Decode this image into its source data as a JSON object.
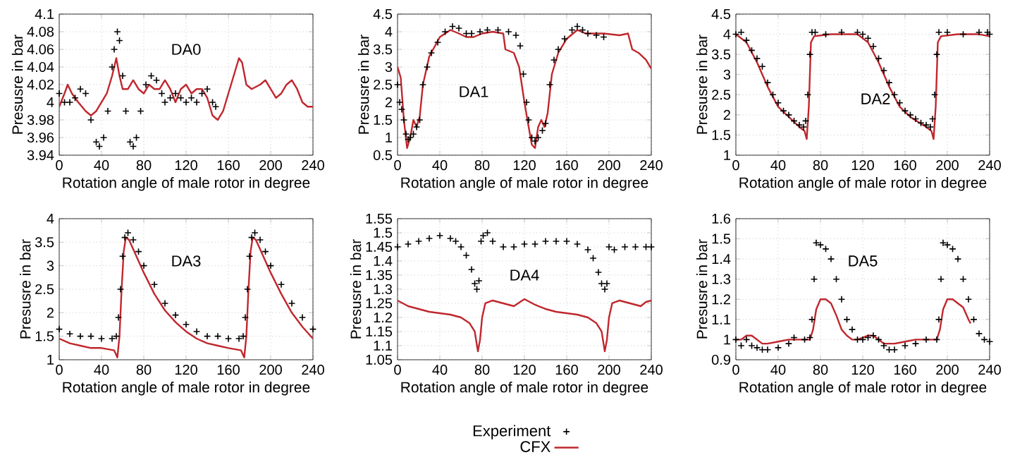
{
  "chart_data": [
    {
      "type": "line",
      "xlabel": "Rotation angle of male rotor in degree",
      "ylabel": "Presusre in bar",
      "annotations": [
        "DA0"
      ],
      "xlim": [
        0,
        240
      ],
      "xticks": [
        0,
        40,
        80,
        120,
        160,
        200,
        240
      ],
      "ylim": [
        3.94,
        4.1
      ],
      "yticks": [
        3.94,
        3.96,
        3.98,
        4,
        4.02,
        4.04,
        4.06,
        4.08,
        4.1
      ],
      "grid": true,
      "series": [
        {
          "type": "scatter",
          "marker": "cross",
          "color": "#000000",
          "x": [
            0,
            5,
            10,
            15,
            20,
            25,
            30,
            35,
            38,
            42,
            46,
            50,
            52,
            55,
            57,
            60,
            63,
            67,
            70,
            73,
            77,
            82,
            87,
            92,
            97,
            100,
            105,
            110,
            115,
            120,
            125,
            130,
            135,
            140,
            145,
            148
          ],
          "values": [
            4.01,
            4.0,
            4.0,
            4.005,
            4.015,
            4.01,
            3.98,
            3.955,
            3.95,
            3.96,
            3.99,
            4.04,
            4.06,
            4.08,
            4.07,
            4.03,
            3.99,
            3.955,
            3.95,
            3.96,
            3.99,
            4.02,
            4.03,
            4.025,
            4.01,
            4.0,
            4.005,
            4.01,
            4.005,
            4.0,
            4.005,
            4.0,
            4.01,
            4.015,
            4.0,
            3.995
          ]
        },
        {
          "line_style": "solid",
          "color": "#c0272d",
          "x": [
            0,
            5,
            8,
            12,
            18,
            25,
            30,
            35,
            40,
            45,
            50,
            54,
            57,
            60,
            65,
            70,
            75,
            80,
            85,
            90,
            95,
            100,
            105,
            110,
            115,
            120,
            125,
            130,
            135,
            140,
            145,
            150,
            155,
            160,
            165,
            170,
            173,
            177,
            182,
            190,
            195,
            200,
            205,
            210,
            215,
            220,
            225,
            230,
            235,
            240
          ],
          "values": [
            3.995,
            4.01,
            4.02,
            4.01,
            4.0,
            3.99,
            3.985,
            3.99,
            4.0,
            4.01,
            4.03,
            4.05,
            4.03,
            4.015,
            4.015,
            4.025,
            4.015,
            4.01,
            4.02,
            4.015,
            4.015,
            4.025,
            4.015,
            4.0,
            4.015,
            4.02,
            4.01,
            4.015,
            4.015,
            4.005,
            3.985,
            3.98,
            3.99,
            4.01,
            4.03,
            4.05,
            4.045,
            4.02,
            4.015,
            4.02,
            4.025,
            4.015,
            4.005,
            4.01,
            4.02,
            4.025,
            4.015,
            4.0,
            3.995,
            3.995
          ]
        }
      ]
    },
    {
      "type": "line",
      "xlabel": "Rotation angle of male rotor in degree",
      "ylabel": "Presusre in bar",
      "annotations": [
        "DA1"
      ],
      "xlim": [
        0,
        240
      ],
      "xticks": [
        0,
        40,
        80,
        120,
        160,
        200,
        240
      ],
      "ylim": [
        0.5,
        4.5
      ],
      "yticks": [
        0.5,
        1,
        1.5,
        2,
        2.5,
        3,
        3.5,
        4,
        4.5
      ],
      "grid": true,
      "series": [
        {
          "type": "scatter",
          "marker": "cross",
          "color": "#000000",
          "x": [
            0,
            2,
            4,
            6,
            8,
            10,
            12,
            15,
            18,
            21,
            24,
            28,
            32,
            38,
            45,
            52,
            58,
            65,
            70,
            78,
            85,
            95,
            105,
            112,
            116,
            119,
            122,
            124,
            127,
            130,
            133,
            137,
            140,
            144,
            148,
            152,
            158,
            165,
            170,
            175,
            180,
            188,
            195
          ],
          "values": [
            2.5,
            2.0,
            1.8,
            1.5,
            1.1,
            0.95,
            1.0,
            1.1,
            1.3,
            1.5,
            2.5,
            3.0,
            3.4,
            3.7,
            4.0,
            4.15,
            4.1,
            3.95,
            3.95,
            4.0,
            4.05,
            4.05,
            4.0,
            3.9,
            3.6,
            2.8,
            2.0,
            1.5,
            1.0,
            0.9,
            1.0,
            1.2,
            1.4,
            2.5,
            3.2,
            3.5,
            3.8,
            4.05,
            4.15,
            4.05,
            3.95,
            3.9,
            3.85
          ]
        },
        {
          "line_style": "solid",
          "color": "#c0272d",
          "x": [
            0,
            3,
            6,
            9,
            12,
            15,
            18,
            21,
            24,
            30,
            40,
            50,
            58,
            65,
            72,
            80,
            90,
            100,
            102,
            110,
            115,
            120,
            124,
            127,
            130,
            133,
            136,
            139,
            142,
            146,
            152,
            160,
            170,
            178,
            185,
            195,
            210,
            218,
            222,
            228,
            235,
            240
          ],
          "values": [
            3.0,
            2.7,
            1.5,
            0.7,
            1.0,
            1.5,
            1.3,
            1.6,
            2.5,
            3.3,
            3.85,
            4.05,
            3.95,
            3.85,
            3.85,
            3.95,
            4.0,
            3.95,
            3.5,
            3.4,
            3.0,
            2.0,
            1.3,
            0.8,
            0.7,
            1.3,
            1.5,
            1.3,
            1.7,
            2.8,
            3.4,
            3.8,
            4.05,
            3.95,
            3.95,
            3.95,
            3.9,
            3.95,
            3.5,
            3.4,
            3.2,
            2.95
          ]
        }
      ]
    },
    {
      "type": "line",
      "xlabel": "Rotation angle of male rotor in degree",
      "ylabel": "Presusre in bar",
      "annotations": [
        "DA2"
      ],
      "xlim": [
        0,
        240
      ],
      "xticks": [
        0,
        40,
        80,
        120,
        160,
        200,
        240
      ],
      "ylim": [
        1,
        4.5
      ],
      "yticks": [
        1,
        1.5,
        2,
        2.5,
        3,
        3.5,
        4,
        4.5
      ],
      "grid": true,
      "series": [
        {
          "type": "scatter",
          "marker": "cross",
          "color": "#000000",
          "x": [
            0,
            5,
            10,
            15,
            20,
            25,
            30,
            35,
            40,
            45,
            50,
            55,
            60,
            64,
            66,
            68,
            70,
            72,
            75,
            85,
            100,
            115,
            120,
            125,
            130,
            135,
            140,
            145,
            150,
            155,
            160,
            165,
            170,
            175,
            180,
            184,
            186,
            188,
            190,
            192,
            200,
            215,
            230,
            238,
            240
          ],
          "values": [
            4.0,
            4.05,
            3.85,
            3.6,
            3.4,
            3.2,
            2.8,
            2.5,
            2.3,
            2.1,
            2.0,
            1.85,
            1.75,
            1.7,
            1.85,
            2.5,
            3.5,
            4.05,
            4.05,
            4.0,
            4.05,
            4.05,
            4.0,
            3.9,
            3.7,
            3.4,
            3.1,
            2.8,
            2.5,
            2.3,
            2.1,
            2.0,
            1.9,
            1.8,
            1.75,
            1.7,
            1.9,
            2.5,
            3.5,
            4.05,
            4.05,
            4.0,
            4.05,
            4.05,
            4.0
          ]
        },
        {
          "line_style": "solid",
          "color": "#c0272d",
          "x": [
            0,
            10,
            20,
            30,
            40,
            50,
            60,
            65,
            67,
            69,
            71,
            74,
            90,
            115,
            125,
            135,
            145,
            155,
            165,
            180,
            185,
            187,
            189,
            191,
            194,
            210,
            230,
            240
          ],
          "values": [
            4.0,
            3.8,
            3.3,
            2.7,
            2.2,
            1.95,
            1.7,
            1.6,
            1.4,
            2.2,
            3.8,
            3.95,
            4.0,
            4.0,
            3.8,
            3.3,
            2.7,
            2.2,
            1.95,
            1.7,
            1.6,
            1.4,
            2.2,
            3.8,
            3.95,
            4.0,
            4.0,
            3.95
          ]
        }
      ]
    },
    {
      "type": "line",
      "xlabel": "Rotation angle of male rotor in degree",
      "ylabel": "Presusre in bar",
      "annotations": [
        "DA3"
      ],
      "xlim": [
        0,
        240
      ],
      "xticks": [
        0,
        40,
        80,
        120,
        160,
        200,
        240
      ],
      "ylim": [
        1,
        4
      ],
      "yticks": [
        1,
        1.5,
        2,
        2.5,
        3,
        3.5,
        4
      ],
      "grid": true,
      "series": [
        {
          "type": "scatter",
          "marker": "cross",
          "color": "#000000",
          "x": [
            0,
            10,
            20,
            30,
            40,
            50,
            54,
            56,
            58,
            60,
            62,
            65,
            70,
            75,
            80,
            90,
            100,
            110,
            120,
            130,
            140,
            150,
            160,
            170,
            174,
            176,
            178,
            180,
            182,
            185,
            190,
            195,
            200,
            210,
            220,
            230,
            240
          ],
          "values": [
            1.65,
            1.55,
            1.5,
            1.5,
            1.45,
            1.45,
            1.5,
            1.9,
            2.5,
            3.2,
            3.6,
            3.7,
            3.55,
            3.3,
            3.0,
            2.6,
            2.2,
            1.95,
            1.75,
            1.6,
            1.5,
            1.5,
            1.45,
            1.45,
            1.5,
            1.9,
            2.5,
            3.2,
            3.6,
            3.7,
            3.55,
            3.3,
            3.0,
            2.6,
            2.2,
            1.9,
            1.65
          ]
        },
        {
          "line_style": "solid",
          "color": "#c0272d",
          "x": [
            0,
            10,
            20,
            30,
            40,
            52,
            55,
            57,
            59,
            61,
            63,
            66,
            70,
            80,
            90,
            100,
            110,
            120,
            130,
            140,
            150,
            160,
            172,
            175,
            177,
            179,
            181,
            183,
            186,
            190,
            200,
            210,
            220,
            230,
            240
          ],
          "values": [
            1.45,
            1.35,
            1.3,
            1.25,
            1.25,
            1.2,
            1.05,
            1.5,
            2.5,
            3.3,
            3.6,
            3.55,
            3.35,
            2.85,
            2.4,
            2.05,
            1.8,
            1.6,
            1.45,
            1.35,
            1.3,
            1.25,
            1.2,
            1.05,
            1.5,
            2.5,
            3.3,
            3.6,
            3.55,
            3.35,
            2.85,
            2.4,
            2.0,
            1.7,
            1.45
          ]
        }
      ]
    },
    {
      "type": "line",
      "xlabel": "Rotation angle of male rotor in degree",
      "ylabel": "Presusre in bar",
      "annotations": [
        "DA4"
      ],
      "xlim": [
        0,
        240
      ],
      "xticks": [
        0,
        40,
        80,
        120,
        160,
        200,
        240
      ],
      "ylim": [
        1.05,
        1.55
      ],
      "yticks": [
        1.05,
        1.1,
        1.15,
        1.2,
        1.25,
        1.3,
        1.35,
        1.4,
        1.45,
        1.5,
        1.55
      ],
      "grid": true,
      "legend": "bottom",
      "series": [
        {
          "type": "scatter",
          "name": "Experiment",
          "marker": "cross",
          "color": "#000000",
          "x": [
            0,
            10,
            20,
            30,
            40,
            50,
            55,
            60,
            65,
            70,
            73,
            75,
            77,
            79,
            81,
            85,
            90,
            100,
            110,
            120,
            130,
            140,
            150,
            160,
            170,
            180,
            185,
            190,
            193,
            196,
            198,
            200,
            205,
            215,
            225,
            235,
            240
          ],
          "values": [
            1.45,
            1.46,
            1.47,
            1.48,
            1.49,
            1.48,
            1.47,
            1.45,
            1.42,
            1.37,
            1.32,
            1.3,
            1.33,
            1.47,
            1.49,
            1.5,
            1.47,
            1.45,
            1.45,
            1.46,
            1.46,
            1.47,
            1.47,
            1.47,
            1.46,
            1.44,
            1.41,
            1.36,
            1.32,
            1.3,
            1.32,
            1.45,
            1.44,
            1.45,
            1.45,
            1.45,
            1.45
          ]
        },
        {
          "name": "CFX",
          "line_style": "solid",
          "color": "#c0272d",
          "x": [
            0,
            10,
            20,
            30,
            40,
            50,
            60,
            68,
            73,
            76,
            78,
            80,
            83,
            90,
            100,
            110,
            120,
            130,
            140,
            150,
            160,
            170,
            180,
            188,
            193,
            196,
            198,
            200,
            203,
            210,
            220,
            230,
            235,
            240
          ],
          "values": [
            1.26,
            1.24,
            1.23,
            1.22,
            1.215,
            1.21,
            1.2,
            1.18,
            1.15,
            1.08,
            1.12,
            1.2,
            1.25,
            1.26,
            1.25,
            1.24,
            1.265,
            1.245,
            1.23,
            1.22,
            1.215,
            1.21,
            1.2,
            1.18,
            1.15,
            1.08,
            1.12,
            1.2,
            1.25,
            1.26,
            1.25,
            1.24,
            1.255,
            1.26
          ]
        }
      ]
    },
    {
      "type": "line",
      "xlabel": "Rotation angle of male rotor in degree",
      "ylabel": "Presusre in bar",
      "annotations": [
        "DA5"
      ],
      "xlim": [
        0,
        240
      ],
      "xticks": [
        0,
        40,
        80,
        120,
        160,
        200,
        240
      ],
      "ylim": [
        0.9,
        1.6
      ],
      "yticks": [
        0.9,
        1,
        1.1,
        1.2,
        1.3,
        1.4,
        1.5,
        1.6
      ],
      "grid": true,
      "series": [
        {
          "type": "scatter",
          "marker": "cross",
          "color": "#000000",
          "x": [
            0,
            5,
            10,
            15,
            20,
            25,
            30,
            40,
            50,
            55,
            65,
            70,
            72,
            74,
            76,
            80,
            85,
            90,
            95,
            100,
            105,
            110,
            115,
            120,
            125,
            130,
            135,
            140,
            145,
            150,
            160,
            170,
            180,
            190,
            192,
            194,
            196,
            200,
            205,
            210,
            215,
            220,
            225,
            230,
            235,
            240
          ],
          "values": [
            1.0,
            0.97,
            1.0,
            0.97,
            0.96,
            0.95,
            0.95,
            0.96,
            0.98,
            1.01,
            1.0,
            1.01,
            1.1,
            1.3,
            1.48,
            1.47,
            1.45,
            1.4,
            1.3,
            1.2,
            1.1,
            1.05,
            1.0,
            1.0,
            1.01,
            1.02,
            1.0,
            0.97,
            0.95,
            0.95,
            0.97,
            0.98,
            1.0,
            1.0,
            1.1,
            1.3,
            1.48,
            1.47,
            1.45,
            1.4,
            1.3,
            1.2,
            1.1,
            1.03,
            1.0,
            0.99
          ]
        },
        {
          "line_style": "solid",
          "color": "#c0272d",
          "x": [
            0,
            5,
            10,
            15,
            20,
            25,
            30,
            40,
            50,
            60,
            70,
            73,
            76,
            80,
            85,
            90,
            95,
            100,
            105,
            110,
            115,
            120,
            125,
            130,
            135,
            140,
            150,
            160,
            170,
            180,
            190,
            193,
            196,
            200,
            205,
            210,
            215,
            220,
            222
          ],
          "values": [
            1.0,
            1.0,
            1.02,
            1.02,
            1.0,
            0.98,
            0.98,
            0.99,
            1.0,
            1.0,
            1.0,
            1.05,
            1.15,
            1.2,
            1.2,
            1.18,
            1.12,
            1.05,
            1.02,
            1.0,
            1.0,
            1.01,
            1.02,
            1.02,
            1.0,
            0.98,
            0.98,
            0.99,
            1.0,
            1.0,
            1.0,
            1.05,
            1.15,
            1.2,
            1.2,
            1.18,
            1.16,
            1.1,
            1.08
          ]
        }
      ]
    }
  ]
}
